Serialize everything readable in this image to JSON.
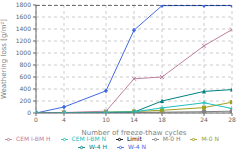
{
  "chart_data": {
    "type": "line",
    "xlabel": "Number of freeze-thaw cycles",
    "ylabel": "Weathering loss [g/m²]",
    "xlim": [
      0,
      28
    ],
    "ylim": [
      0,
      1800
    ],
    "xticks": [
      0,
      4,
      10,
      14,
      18,
      24,
      28
    ],
    "yticks": [
      0,
      200,
      400,
      600,
      800,
      1000,
      1200,
      1400,
      1600,
      1800
    ],
    "grid": true,
    "legend": "bottom",
    "series": [
      {
        "name": "M-0 H",
        "color": "#808080",
        "marker": "circle",
        "line_style": "solid",
        "x": [
          0,
          4,
          10,
          14,
          18,
          24,
          28
        ],
        "values": [
          0,
          3,
          6,
          10,
          14,
          22,
          30
        ]
      },
      {
        "name": "M-0 N",
        "color": "#a0a020",
        "marker": "square",
        "line_style": "solid",
        "x": [
          0,
          4,
          10,
          14,
          18,
          24,
          28
        ],
        "values": [
          0,
          5,
          15,
          25,
          45,
          90,
          180
        ]
      },
      {
        "name": "W-4 H",
        "color": "#008080",
        "marker": "triangle",
        "line_style": "solid",
        "x": [
          0,
          4,
          10,
          14,
          18,
          24,
          28
        ],
        "values": [
          0,
          3,
          8,
          15,
          200,
          360,
          390
        ]
      },
      {
        "name": "W-4 N",
        "color": "#4169e1",
        "marker": "diamond",
        "line_style": "solid",
        "x": [
          0,
          4,
          10,
          14,
          18,
          24,
          28
        ],
        "values": [
          0,
          100,
          370,
          1380,
          1790,
          1790,
          1790
        ]
      },
      {
        "name": "CEM I-BM H",
        "color": "#c080a0",
        "marker": "x",
        "line_style": "solid",
        "x": [
          0,
          4,
          10,
          14,
          18,
          24,
          28
        ],
        "values": [
          0,
          8,
          30,
          570,
          600,
          1120,
          1390
        ]
      },
      {
        "name": "CEM I-BM N",
        "color": "#20c0c0",
        "marker": "plus",
        "line_style": "solid",
        "x": [
          0,
          4,
          10,
          14,
          18,
          24,
          28
        ],
        "values": [
          0,
          4,
          12,
          18,
          85,
          170,
          75
        ]
      },
      {
        "name": "Limit",
        "color": "#000000",
        "marker": "none",
        "line_style": "dashed",
        "x": [
          0,
          28
        ],
        "values": [
          1800,
          1800
        ]
      }
    ]
  }
}
